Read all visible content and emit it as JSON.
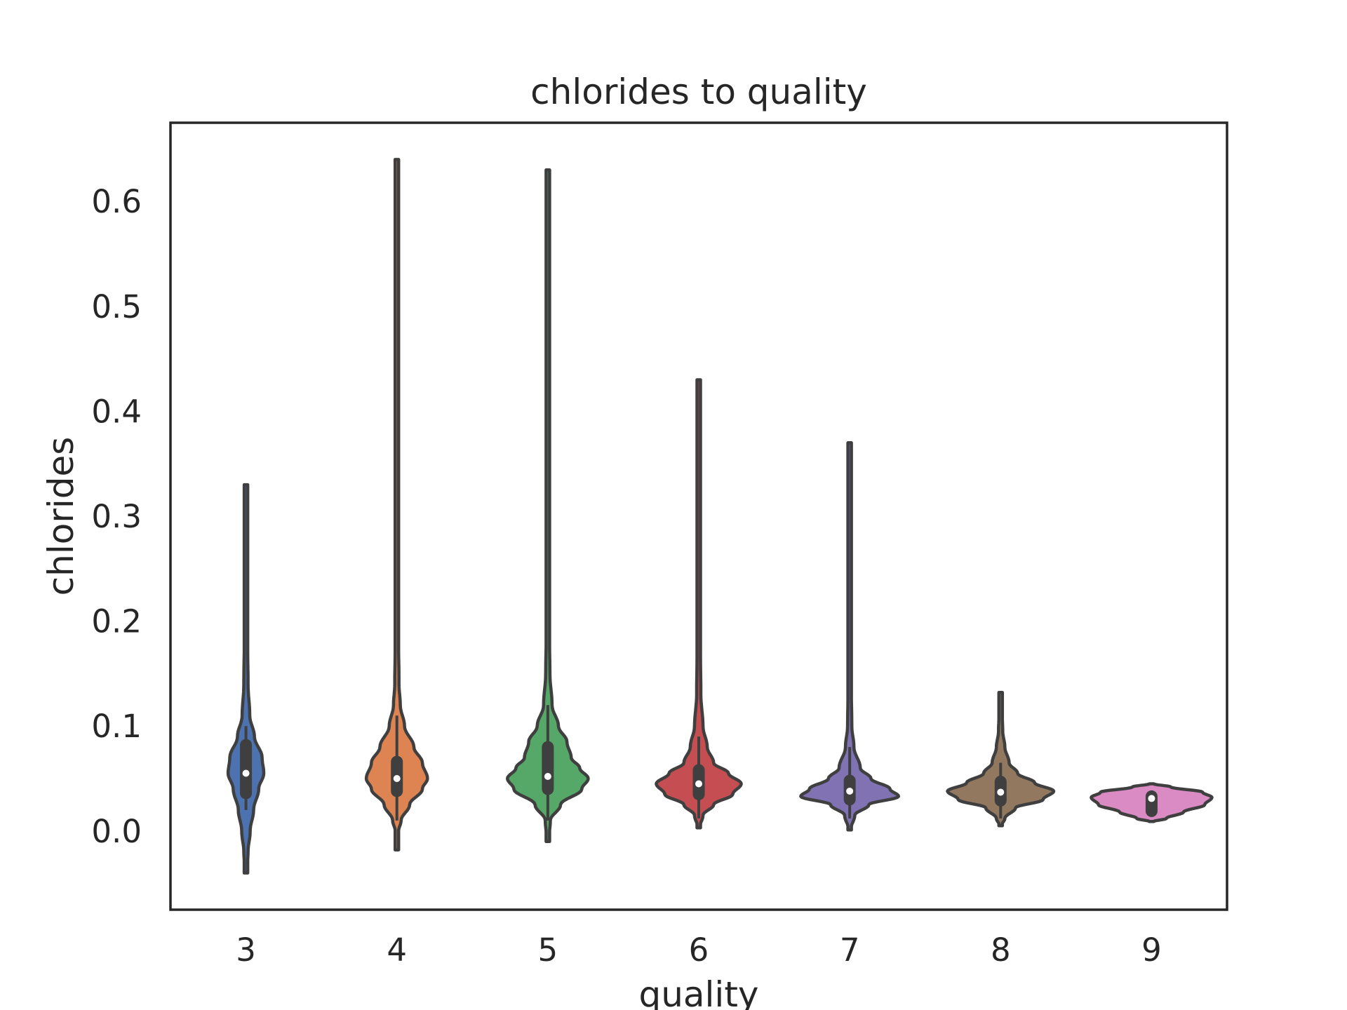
{
  "chart_data": {
    "type": "violin",
    "title": "chlorides to quality",
    "xlabel": "quality",
    "ylabel": "chlorides",
    "ylim": [
      -0.075,
      0.675
    ],
    "yticks": [
      0.0,
      0.1,
      0.2,
      0.3,
      0.4,
      0.5,
      0.6
    ],
    "ytick_labels": [
      "0.0",
      "0.1",
      "0.2",
      "0.3",
      "0.4",
      "0.5",
      "0.6"
    ],
    "grid": false,
    "categories": [
      "3",
      "4",
      "5",
      "6",
      "7",
      "8",
      "9"
    ],
    "colors": [
      "#4c72b0",
      "#dd8452",
      "#55a868",
      "#c44e52",
      "#8172b3",
      "#937860",
      "#da8bc3"
    ],
    "edge_color": "#3f3f3f",
    "violins": [
      {
        "category": "3",
        "min": -0.04,
        "max": 0.33,
        "q1": 0.036,
        "median": 0.055,
        "q3": 0.082,
        "whisker_low": 0.02,
        "whisker_high": 0.1,
        "profile": [
          [
            -0.04,
            0.02
          ],
          [
            -0.02,
            0.05
          ],
          [
            0.0,
            0.1
          ],
          [
            0.02,
            0.18
          ],
          [
            0.04,
            0.3
          ],
          [
            0.055,
            0.42
          ],
          [
            0.07,
            0.38
          ],
          [
            0.09,
            0.2
          ],
          [
            0.11,
            0.09
          ],
          [
            0.14,
            0.05
          ],
          [
            0.2,
            0.03
          ],
          [
            0.26,
            0.025
          ],
          [
            0.33,
            0.02
          ]
        ]
      },
      {
        "category": "4",
        "min": -0.018,
        "max": 0.64,
        "q1": 0.038,
        "median": 0.05,
        "q3": 0.066,
        "whisker_low": 0.01,
        "whisker_high": 0.11,
        "profile": [
          [
            -0.018,
            0.02
          ],
          [
            0.0,
            0.04
          ],
          [
            0.01,
            0.1
          ],
          [
            0.025,
            0.3
          ],
          [
            0.04,
            0.6
          ],
          [
            0.05,
            0.72
          ],
          [
            0.065,
            0.6
          ],
          [
            0.08,
            0.4
          ],
          [
            0.1,
            0.18
          ],
          [
            0.12,
            0.08
          ],
          [
            0.14,
            0.05
          ],
          [
            0.2,
            0.03
          ],
          [
            0.64,
            0.02
          ]
        ]
      },
      {
        "category": "5",
        "min": -0.01,
        "max": 0.63,
        "q1": 0.04,
        "median": 0.052,
        "q3": 0.08,
        "whisker_low": 0.01,
        "whisker_high": 0.12,
        "profile": [
          [
            -0.01,
            0.02
          ],
          [
            0.01,
            0.06
          ],
          [
            0.025,
            0.3
          ],
          [
            0.04,
            0.8
          ],
          [
            0.05,
            0.95
          ],
          [
            0.06,
            0.75
          ],
          [
            0.07,
            0.55
          ],
          [
            0.085,
            0.45
          ],
          [
            0.1,
            0.25
          ],
          [
            0.12,
            0.1
          ],
          [
            0.15,
            0.05
          ],
          [
            0.2,
            0.03
          ],
          [
            0.63,
            0.02
          ]
        ]
      },
      {
        "category": "6",
        "min": 0.003,
        "max": 0.43,
        "q1": 0.035,
        "median": 0.045,
        "q3": 0.058,
        "whisker_low": 0.012,
        "whisker_high": 0.09,
        "profile": [
          [
            0.003,
            0.02
          ],
          [
            0.015,
            0.1
          ],
          [
            0.025,
            0.35
          ],
          [
            0.035,
            0.8
          ],
          [
            0.045,
            1.0
          ],
          [
            0.055,
            0.7
          ],
          [
            0.065,
            0.35
          ],
          [
            0.08,
            0.2
          ],
          [
            0.1,
            0.1
          ],
          [
            0.13,
            0.05
          ],
          [
            0.2,
            0.025
          ],
          [
            0.43,
            0.02
          ]
        ]
      },
      {
        "category": "7",
        "min": 0.001,
        "max": 0.37,
        "q1": 0.03,
        "median": 0.038,
        "q3": 0.048,
        "whisker_low": 0.012,
        "whisker_high": 0.08,
        "profile": [
          [
            0.001,
            0.02
          ],
          [
            0.015,
            0.12
          ],
          [
            0.025,
            0.45
          ],
          [
            0.033,
            1.15
          ],
          [
            0.04,
            0.95
          ],
          [
            0.05,
            0.5
          ],
          [
            0.06,
            0.25
          ],
          [
            0.08,
            0.1
          ],
          [
            0.1,
            0.05
          ],
          [
            0.15,
            0.03
          ],
          [
            0.37,
            0.02
          ]
        ]
      },
      {
        "category": "8",
        "min": 0.005,
        "max": 0.132,
        "q1": 0.029,
        "median": 0.037,
        "q3": 0.047,
        "whisker_low": 0.012,
        "whisker_high": 0.065,
        "profile": [
          [
            0.005,
            0.02
          ],
          [
            0.012,
            0.1
          ],
          [
            0.022,
            0.35
          ],
          [
            0.03,
            1.0
          ],
          [
            0.038,
            1.25
          ],
          [
            0.046,
            0.8
          ],
          [
            0.055,
            0.4
          ],
          [
            0.065,
            0.2
          ],
          [
            0.08,
            0.1
          ],
          [
            0.095,
            0.05
          ],
          [
            0.11,
            0.04
          ],
          [
            0.125,
            0.04
          ],
          [
            0.132,
            0.02
          ]
        ]
      },
      {
        "category": "9",
        "min": 0.009,
        "max": 0.045,
        "q1": 0.019,
        "median": 0.031,
        "q3": 0.033,
        "whisker_low": 0.018,
        "whisker_high": 0.034,
        "profile": [
          [
            0.009,
            0.05
          ],
          [
            0.012,
            0.35
          ],
          [
            0.018,
            0.75
          ],
          [
            0.025,
            1.25
          ],
          [
            0.032,
            1.42
          ],
          [
            0.037,
            1.2
          ],
          [
            0.042,
            0.45
          ],
          [
            0.045,
            0.05
          ]
        ]
      }
    ]
  }
}
